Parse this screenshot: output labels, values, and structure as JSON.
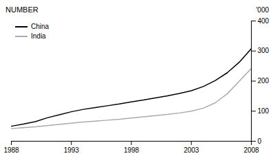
{
  "chart_data": {
    "type": "line",
    "title": "NUMBER",
    "ylabel": "'000",
    "x": [
      1988,
      1989,
      1990,
      1991,
      1992,
      1993,
      1994,
      1995,
      1996,
      1997,
      1998,
      1999,
      2000,
      2001,
      2002,
      2003,
      2004,
      2005,
      2006,
      2007,
      2008
    ],
    "series": [
      {
        "name": "China",
        "color": "#000000",
        "values": [
          50,
          57,
          65,
          78,
          88,
          98,
          106,
          112,
          118,
          124,
          131,
          137,
          144,
          151,
          159,
          168,
          182,
          202,
          228,
          263,
          308
        ]
      },
      {
        "name": "India",
        "color": "#aaaaaa",
        "values": [
          42,
          45,
          48,
          52,
          56,
          60,
          64,
          67,
          70,
          73,
          77,
          81,
          85,
          89,
          94,
          100,
          110,
          128,
          158,
          200,
          242
        ]
      }
    ],
    "xlim": [
      1988,
      2008
    ],
    "ylim": [
      0,
      400
    ],
    "xticks": [
      1988,
      1993,
      1998,
      2003,
      2008
    ],
    "yticks": [
      0,
      100,
      200,
      300,
      400
    ],
    "grid": false,
    "legend": "upper left"
  }
}
